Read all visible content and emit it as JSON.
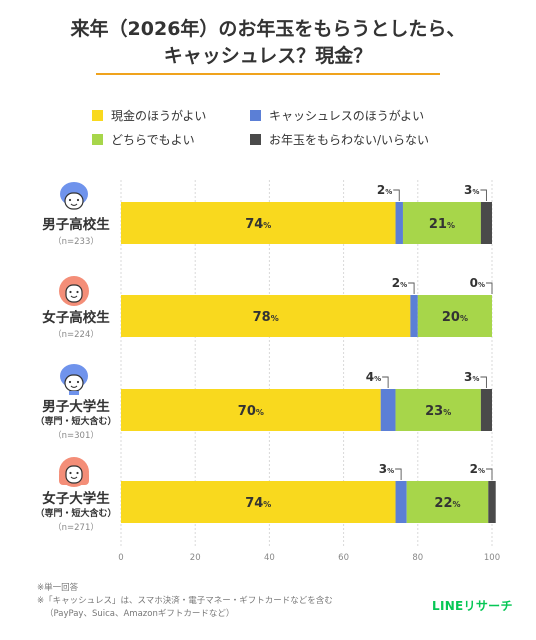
{
  "title": {
    "line1": "来年（2026年）のお年玉をもらうとしたら、",
    "line2": "キャッシュレス？現金？"
  },
  "colors": {
    "accent": "#f0a31d",
    "cash": "#f9d91e",
    "cashless": "#5b7fd6",
    "either": "#a7d64a",
    "none": "#4a4a4a",
    "brand": "#06c755"
  },
  "chart_data": {
    "type": "bar",
    "orientation": "horizontal-stacked",
    "categories": [
      {
        "label": "男子高校生",
        "sub": "",
        "n": "（n=233）",
        "icon": "boy-icon"
      },
      {
        "label": "女子高校生",
        "sub": "",
        "n": "（n=224）",
        "icon": "girl-icon"
      },
      {
        "label": "男子大学生",
        "sub": "（専門・短大含む）",
        "n": "（n=301）",
        "icon": "man-icon"
      },
      {
        "label": "女子大学生",
        "sub": "（専門・短大含む）",
        "n": "（n=271）",
        "icon": "woman-icon"
      }
    ],
    "series": [
      {
        "name": "現金のほうがよい",
        "color": "#f9d91e",
        "values": [
          74,
          78,
          70,
          74
        ]
      },
      {
        "name": "キャッシュレスのほうがよい",
        "color": "#5b7fd6",
        "values": [
          2,
          2,
          4,
          3
        ]
      },
      {
        "name": "どちらでもよい",
        "color": "#a7d64a",
        "values": [
          21,
          20,
          23,
          22
        ]
      },
      {
        "name": "お年玉をもらわない/いらない",
        "color": "#4a4a4a",
        "values": [
          3,
          0,
          3,
          2
        ]
      }
    ],
    "unit": "%",
    "xlim": [
      0,
      100
    ],
    "xticks": [
      0,
      20,
      40,
      60,
      80,
      100
    ],
    "grid": true,
    "legend_position": "top"
  },
  "footnotes": [
    "※単一回答",
    "※「キャッシュレス」は、スマホ決済・電子マネー・ギフトカードなどを含む",
    "（PayPay、Suica、Amazonギフトカードなど）"
  ],
  "brand": "LINEリサーチ"
}
